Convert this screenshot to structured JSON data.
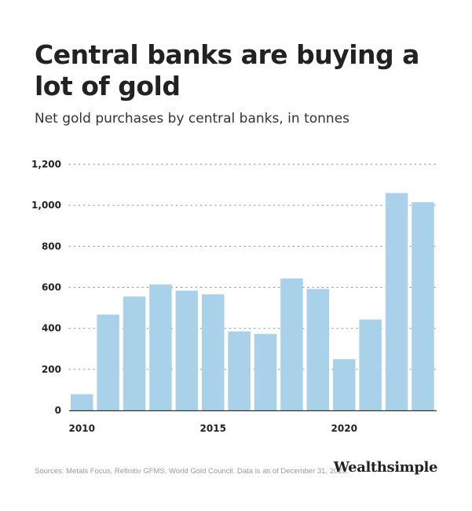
{
  "header": {
    "title": "Central banks are buying a lot of gold",
    "subtitle": "Net gold purchases by central banks, in tonnes"
  },
  "footer": {
    "source": "Sources: Metals Focus, Refinitiv GFMS, World Gold Council. Data is as of December 31, 2023.",
    "brand": "Wealthsimple"
  },
  "colors": {
    "bar": "#a9d1ea",
    "grid": "#9a9a9a",
    "axis": "#333333",
    "text": "#222222"
  },
  "chart_data": {
    "type": "bar",
    "title": "Central banks are buying a lot of gold",
    "subtitle": "Net gold purchases by central banks, in tonnes",
    "xlabel": "",
    "ylabel": "",
    "categories": [
      "2010",
      "2011",
      "2012",
      "2013",
      "2014",
      "2015",
      "2016",
      "2017",
      "2018",
      "2019",
      "2020",
      "2021",
      "2022",
      "2023"
    ],
    "values": [
      79,
      467,
      555,
      614,
      584,
      566,
      385,
      373,
      643,
      592,
      250,
      443,
      1060,
      1015
    ],
    "x_tick_labels": [
      "2010",
      "2015",
      "2020"
    ],
    "y_ticks": [
      0,
      200,
      400,
      600,
      800,
      1000,
      1200
    ],
    "y_tick_labels": [
      "0",
      "200",
      "400",
      "600",
      "800",
      "1,000",
      "1,200"
    ],
    "ylim": [
      0,
      1200
    ],
    "grid": true,
    "legend": "none"
  }
}
